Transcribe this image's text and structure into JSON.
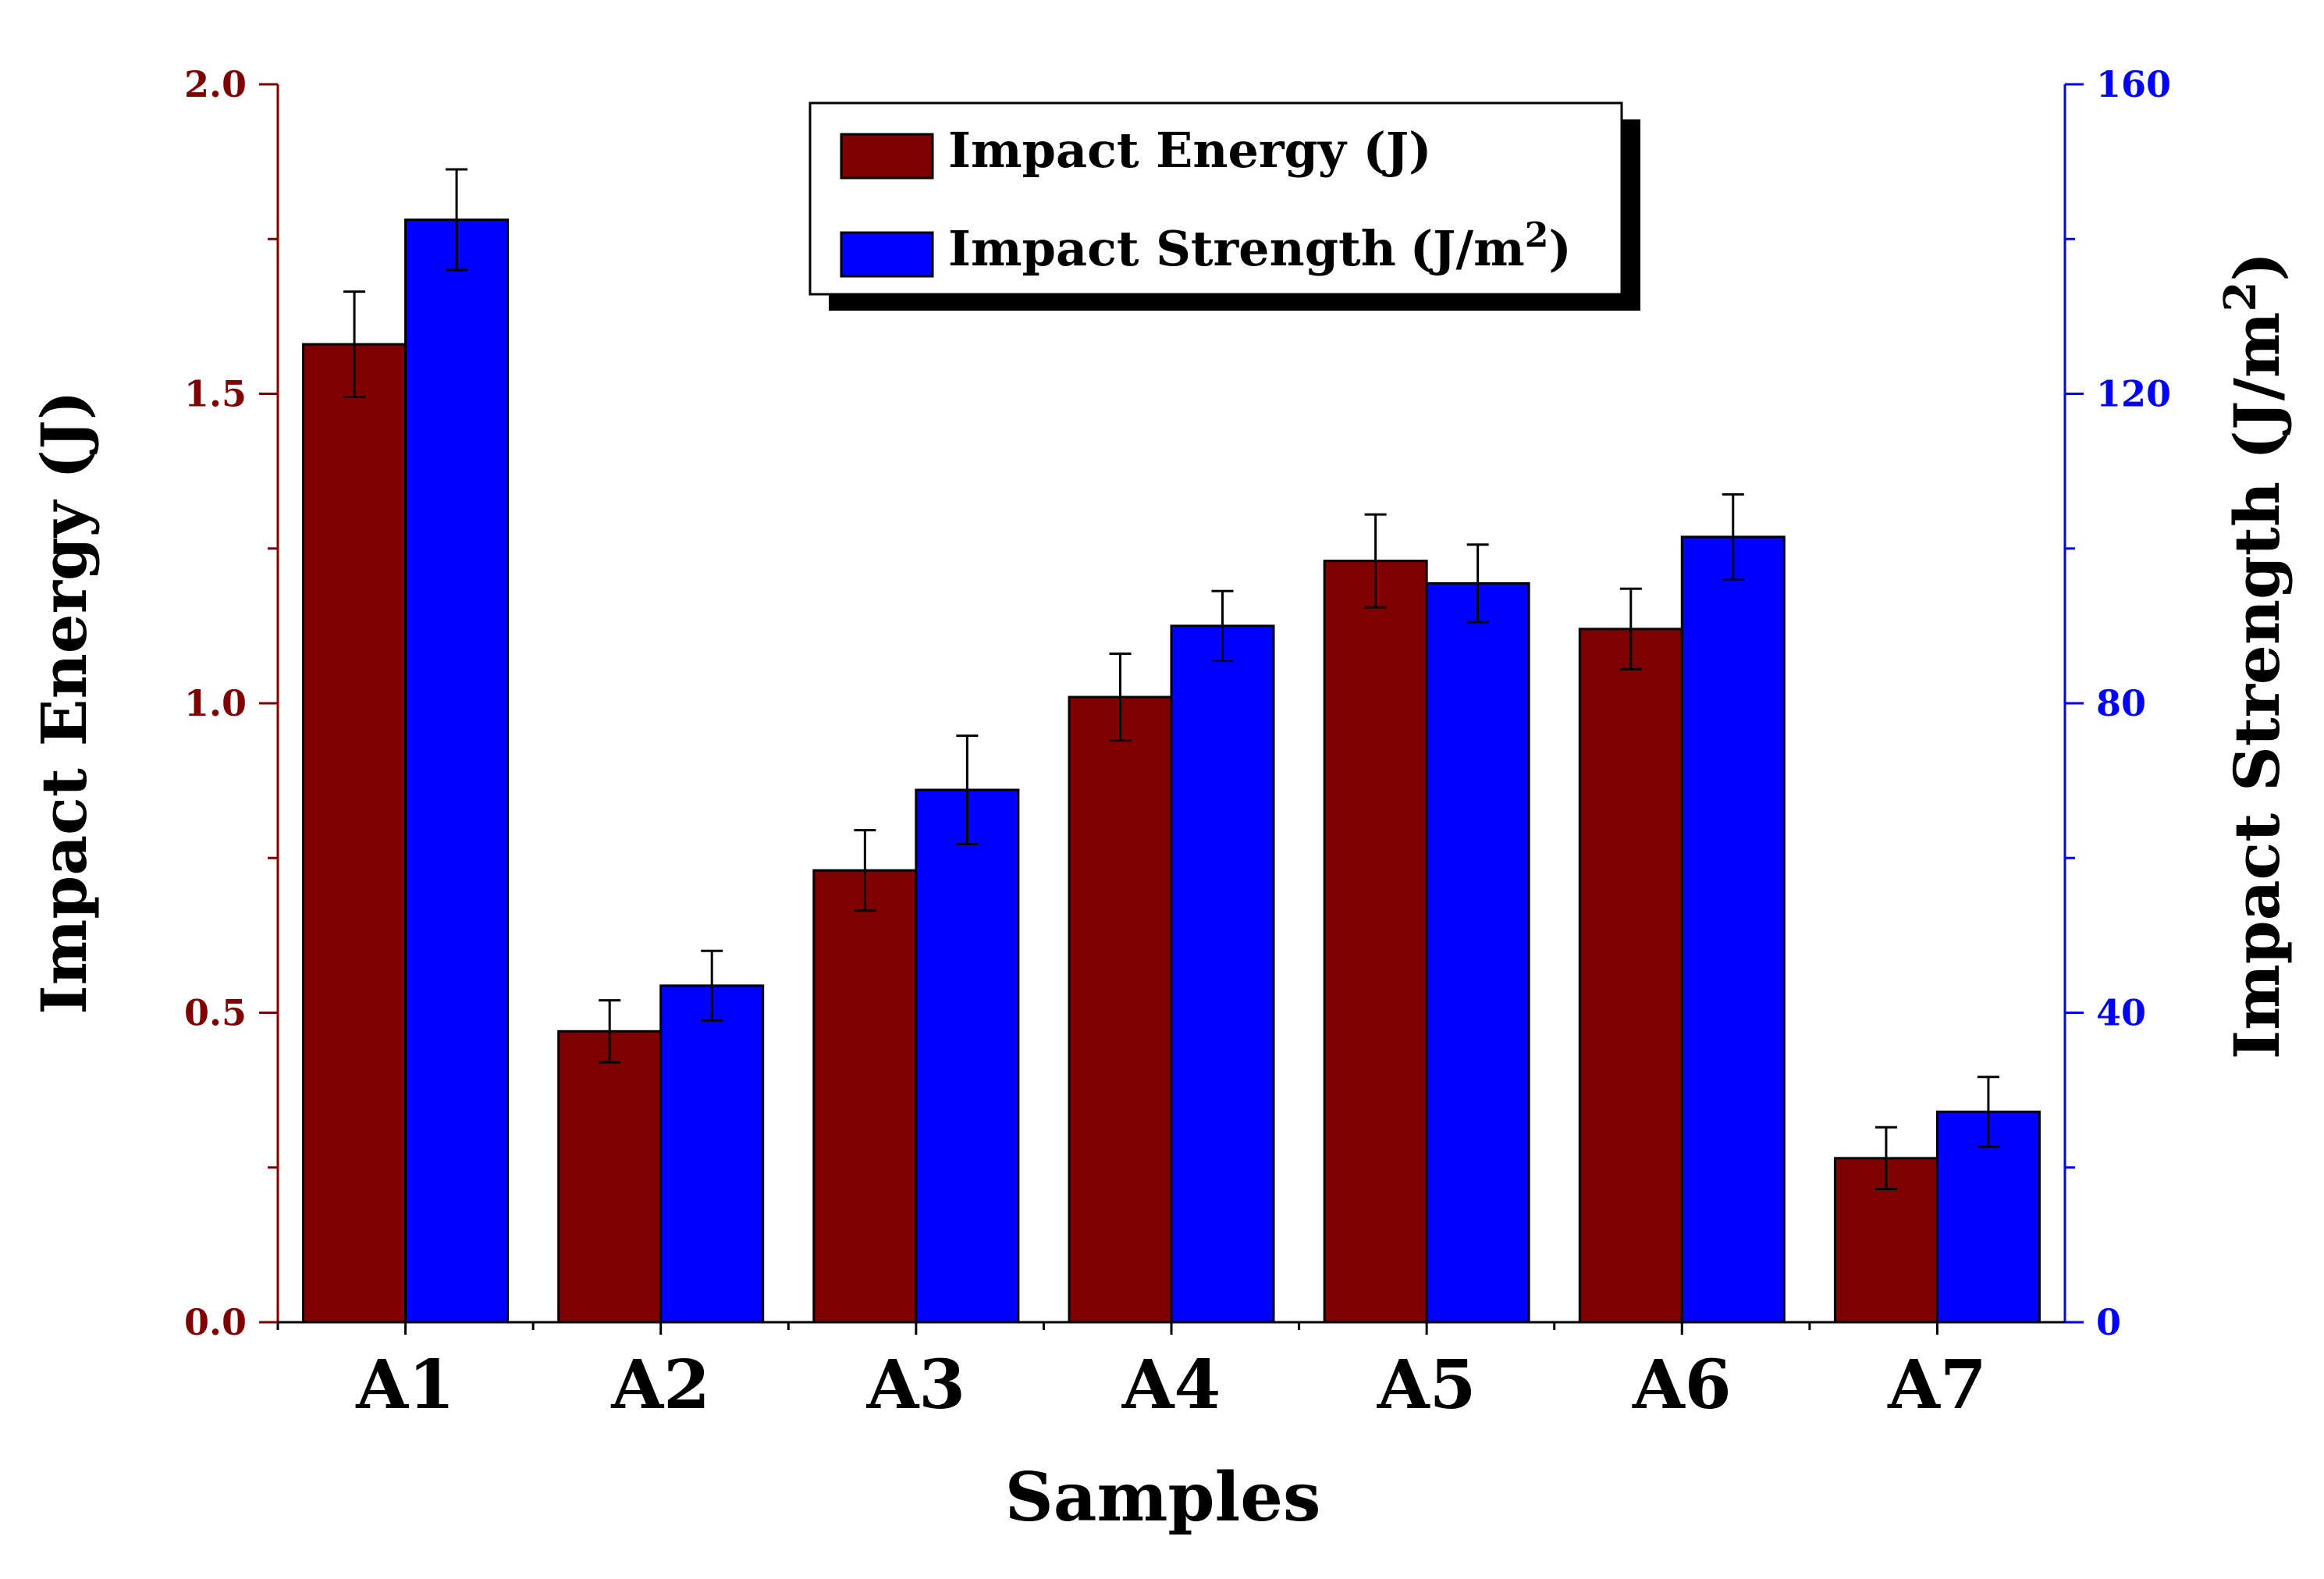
{
  "chart_data": {
    "type": "bar",
    "title": "",
    "xlabel": "Samples",
    "ylabel": "Impact Energy (J)",
    "y2label_main": "Impact Strength (J/m",
    "y2label_sup": "2",
    "y2label_end": ")",
    "categories": [
      "A1",
      "A2",
      "A3",
      "A4",
      "A5",
      "A6",
      "A7"
    ],
    "ylim": [
      0,
      2.0
    ],
    "y_ticks": [
      "0.0",
      "0.5",
      "1.0",
      "1.5",
      "2.0"
    ],
    "y2lim": [
      0,
      160
    ],
    "y2_ticks": [
      "0",
      "40",
      "80",
      "120",
      "160"
    ],
    "series": [
      {
        "name": "Impact Energy (J)",
        "axis": "left",
        "color": "#7f0000",
        "values": [
          1.58,
          0.47,
          0.73,
          1.01,
          1.23,
          1.12,
          0.265
        ],
        "errors": [
          0.085,
          0.05,
          0.065,
          0.07,
          0.075,
          0.065,
          0.05
        ]
      },
      {
        "name": "Impact Strength",
        "name_unit": "(J/m",
        "name_sup": "2",
        "name_end": ")",
        "axis": "right",
        "color": "#0000ff",
        "values": [
          142.5,
          43.5,
          68.8,
          90.0,
          95.5,
          101.5,
          27.2
        ],
        "errors": [
          6.5,
          4.5,
          7.0,
          4.5,
          5.0,
          5.5,
          4.5
        ]
      }
    ],
    "legend_position": "top-center",
    "colors": {
      "left_axis": "#7f0000",
      "right_axis": "#0000ff",
      "axis_label": "#000000"
    }
  }
}
